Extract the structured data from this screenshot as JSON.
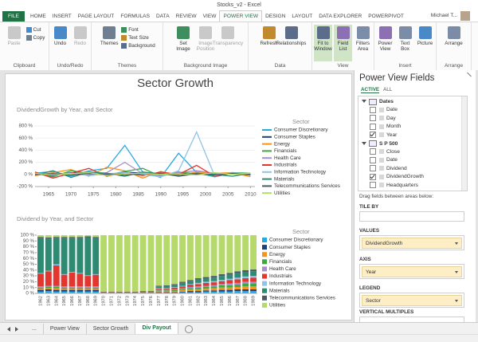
{
  "window": {
    "title": "Stocks_v2 - Excel",
    "user": "Michael T..."
  },
  "ribbon": {
    "tabs": [
      "FILE",
      "HOME",
      "INSERT",
      "PAGE LAYOUT",
      "FORMULAS",
      "DATA",
      "REVIEW",
      "VIEW",
      "POWER VIEW",
      "DESIGN",
      "LAYOUT",
      "DATA EXPLORER",
      "POWERPIVOT"
    ],
    "groups": [
      {
        "name": "Clipboard",
        "buttons": [
          "Paste",
          "Cut",
          "Copy"
        ]
      },
      {
        "name": "Undo/Redo",
        "buttons": [
          "Undo",
          "Redo"
        ]
      },
      {
        "name": "Themes",
        "buttons": [
          "Themes",
          "Font",
          "Text Size",
          "Background"
        ]
      },
      {
        "name": "Background Image",
        "buttons": [
          "Set Image",
          "Image Position",
          "Transparency"
        ]
      },
      {
        "name": "Data",
        "buttons": [
          "Refresh",
          "Relationships"
        ]
      },
      {
        "name": "View",
        "buttons": [
          "Fit to Window",
          "Field List",
          "Filters Area"
        ]
      },
      {
        "name": "Insert",
        "buttons": [
          "Power View",
          "Text Box",
          "Picture"
        ]
      },
      {
        "name": "Arrange",
        "buttons": [
          "Arrange"
        ]
      }
    ]
  },
  "report": {
    "title": "Sector Growth"
  },
  "chart_data": [
    {
      "type": "line",
      "title": "DividendGrowth by Year, and Sector",
      "legend_title": "Sector",
      "grid": true,
      "x": [
        1962,
        1966,
        1970,
        1974,
        1978,
        1982,
        1986,
        1990,
        1994,
        1998,
        2002,
        2006,
        2010
      ],
      "xlim": [
        1962,
        2011
      ],
      "xticks": [
        1965,
        1970,
        1975,
        1980,
        1985,
        1990,
        1995,
        2000,
        2005,
        2010
      ],
      "ylim": [
        -200,
        800
      ],
      "yticks": [
        {
          "value": -200,
          "label": "-200 %"
        },
        {
          "value": 0,
          "label": "0 %"
        },
        {
          "value": 200,
          "label": "200 %"
        },
        {
          "value": 400,
          "label": "400 %"
        },
        {
          "value": 600,
          "label": "600 %"
        },
        {
          "value": 800,
          "label": "800 %"
        }
      ],
      "series": [
        {
          "name": "Consumer Discretionary",
          "color": "#27a9e1",
          "values": [
            20,
            50,
            -30,
            60,
            100,
            480,
            40,
            -50,
            350,
            30,
            -40,
            20,
            10
          ]
        },
        {
          "name": "Consumer Staples",
          "color": "#1f3f7a",
          "values": [
            10,
            -20,
            30,
            10,
            -10,
            40,
            20,
            -10,
            30,
            0,
            20,
            10,
            -10
          ]
        },
        {
          "name": "Energy",
          "color": "#f7941d",
          "values": [
            -20,
            30,
            80,
            -30,
            120,
            60,
            -60,
            50,
            -20,
            40,
            20,
            30,
            -40
          ]
        },
        {
          "name": "Financials",
          "color": "#3fa83f",
          "values": [
            30,
            -40,
            60,
            20,
            -10,
            50,
            100,
            -30,
            40,
            10,
            -20,
            30,
            20
          ]
        },
        {
          "name": "Health Care",
          "color": "#a98fc9",
          "values": [
            0,
            20,
            10,
            -10,
            30,
            200,
            10,
            -20,
            30,
            60,
            20,
            0,
            10
          ]
        },
        {
          "name": "Industrials",
          "color": "#e2362f",
          "values": [
            40,
            -60,
            20,
            100,
            -30,
            30,
            -20,
            40,
            0,
            150,
            -30,
            20,
            -10
          ]
        },
        {
          "name": "Information Technology",
          "color": "#8fc3e8",
          "values": [
            10,
            0,
            20,
            -20,
            10,
            30,
            0,
            -40,
            60,
            700,
            -20,
            30,
            0
          ]
        },
        {
          "name": "Materials",
          "color": "#2e8b73",
          "values": [
            -10,
            60,
            -50,
            40,
            20,
            -30,
            40,
            10,
            -20,
            20,
            0,
            -30,
            20
          ]
        },
        {
          "name": "Telecommunications Services",
          "color": "#4d5a66",
          "values": [
            0,
            10,
            -10,
            20,
            0,
            -10,
            10,
            20,
            -30,
            10,
            -10,
            20,
            0
          ]
        },
        {
          "name": "Utilities",
          "color": "#b5d96a",
          "values": [
            20,
            -10,
            10,
            30,
            -20,
            10,
            20,
            0,
            10,
            -10,
            30,
            0,
            20
          ]
        }
      ]
    },
    {
      "type": "bar",
      "stacked": true,
      "grid": false,
      "title": "Dividend by Year, and Sector",
      "legend_title": "Sector",
      "categories": [
        "1962",
        "1963",
        "1964",
        "1965",
        "1966",
        "1967",
        "1968",
        "1969",
        "1970",
        "1971",
        "1972",
        "1973",
        "1974",
        "1975",
        "1976",
        "1977",
        "1978",
        "1979",
        "1980",
        "1981",
        "1982",
        "1983",
        "1984",
        "1985",
        "1986",
        "1987",
        "1988",
        "1989"
      ],
      "ylim": [
        0,
        100
      ],
      "yticks": [
        {
          "value": 0,
          "label": "0 %"
        },
        {
          "value": 10,
          "label": "10 %"
        },
        {
          "value": 20,
          "label": "20 %"
        },
        {
          "value": 30,
          "label": "30 %"
        },
        {
          "value": 40,
          "label": "40 %"
        },
        {
          "value": 50,
          "label": "50 %"
        },
        {
          "value": 60,
          "label": "60 %"
        },
        {
          "value": 70,
          "label": "70 %"
        },
        {
          "value": 80,
          "label": "80 %"
        },
        {
          "value": 90,
          "label": "90 %"
        },
        {
          "value": 100,
          "label": "100 %"
        }
      ],
      "series": [
        {
          "name": "Consumer Discretionary",
          "color": "#27a9e1",
          "values": [
            3,
            4,
            3,
            3,
            3,
            3,
            3,
            3,
            0,
            0,
            0,
            0,
            0,
            0,
            0,
            1,
            1,
            1,
            2,
            2,
            2,
            3,
            3,
            3,
            3,
            4,
            4,
            4
          ]
        },
        {
          "name": "Consumer Staples",
          "color": "#1f3f7a",
          "values": [
            3,
            3,
            3,
            3,
            3,
            3,
            3,
            3,
            0,
            0,
            0,
            0,
            0,
            0,
            0,
            1,
            1,
            1,
            1,
            2,
            2,
            2,
            2,
            3,
            3,
            3,
            3,
            3
          ]
        },
        {
          "name": "Energy",
          "color": "#f7941d",
          "values": [
            2,
            2,
            3,
            2,
            2,
            2,
            2,
            2,
            1,
            1,
            1,
            1,
            1,
            1,
            1,
            2,
            2,
            2,
            3,
            3,
            3,
            3,
            4,
            4,
            4,
            4,
            5,
            5
          ]
        },
        {
          "name": "Financials",
          "color": "#3fa83f",
          "values": [
            2,
            2,
            2,
            2,
            2,
            2,
            2,
            2,
            0,
            0,
            0,
            0,
            0,
            0,
            0,
            1,
            1,
            2,
            2,
            2,
            3,
            3,
            3,
            4,
            4,
            4,
            5,
            5
          ]
        },
        {
          "name": "Health Care",
          "color": "#a98fc9",
          "values": [
            2,
            2,
            2,
            2,
            2,
            2,
            2,
            2,
            0,
            0,
            0,
            0,
            0,
            0,
            0,
            1,
            1,
            1,
            1,
            2,
            2,
            2,
            2,
            2,
            3,
            3,
            3,
            3
          ]
        },
        {
          "name": "Industrials",
          "color": "#e2362f",
          "values": [
            22,
            25,
            35,
            20,
            24,
            22,
            18,
            20,
            1,
            1,
            1,
            1,
            1,
            1,
            1,
            2,
            2,
            3,
            3,
            4,
            4,
            5,
            5,
            5,
            6,
            6,
            6,
            7
          ]
        },
        {
          "name": "Information Technology",
          "color": "#8fc3e8",
          "values": [
            1,
            1,
            2,
            1,
            1,
            1,
            1,
            1,
            0,
            0,
            0,
            0,
            0,
            0,
            0,
            1,
            1,
            1,
            1,
            1,
            2,
            2,
            2,
            2,
            2,
            3,
            3,
            3
          ]
        },
        {
          "name": "Materials",
          "color": "#2e8b73",
          "values": [
            60,
            55,
            45,
            62,
            58,
            60,
            65,
            62,
            1,
            1,
            1,
            1,
            1,
            2,
            2,
            3,
            4,
            4,
            5,
            5,
            6,
            6,
            6,
            7,
            7,
            8,
            8,
            8
          ]
        },
        {
          "name": "Telecommunications Services",
          "color": "#4d5a66",
          "values": [
            2,
            2,
            2,
            2,
            2,
            2,
            2,
            2,
            0,
            0,
            0,
            0,
            0,
            0,
            0,
            1,
            1,
            1,
            2,
            2,
            2,
            2,
            3,
            3,
            3,
            3,
            3,
            3
          ]
        },
        {
          "name": "Utilities",
          "color": "#b5d96a",
          "values": [
            3,
            4,
            3,
            3,
            3,
            3,
            2,
            3,
            97,
            97,
            97,
            97,
            97,
            96,
            96,
            87,
            86,
            84,
            80,
            77,
            74,
            72,
            70,
            67,
            65,
            62,
            60,
            59
          ]
        }
      ]
    }
  ],
  "fields_pane": {
    "title": "Power View Fields",
    "tabs": [
      "ACTIVE",
      "ALL"
    ],
    "tables": [
      {
        "name": "Dates",
        "fields": [
          {
            "name": "Date",
            "checked": false
          },
          {
            "name": "Day",
            "checked": false
          },
          {
            "name": "Month",
            "checked": false
          },
          {
            "name": "Year",
            "checked": true
          }
        ]
      },
      {
        "name": "S P 500",
        "fields": [
          {
            "name": "Close",
            "checked": false
          },
          {
            "name": "Date",
            "checked": false
          },
          {
            "name": "Dividend",
            "checked": false
          },
          {
            "name": "DividendGrowth",
            "checked": true
          },
          {
            "name": "Headquarters",
            "checked": false
          }
        ]
      }
    ],
    "hint": "Drag fields between areas below:",
    "areas": [
      {
        "name": "TILE BY",
        "fields": []
      },
      {
        "name": "VALUES",
        "fields": [
          "DividendGrowth"
        ]
      },
      {
        "name": "AXIS",
        "fields": [
          "Year"
        ]
      },
      {
        "name": "LEGEND",
        "fields": [
          "Sector"
        ]
      },
      {
        "name": "VERTICAL MULTIPLES",
        "fields": []
      }
    ]
  },
  "sheet_tabs": [
    "...",
    "Power View",
    "Sector Growth",
    "Div Payout"
  ]
}
